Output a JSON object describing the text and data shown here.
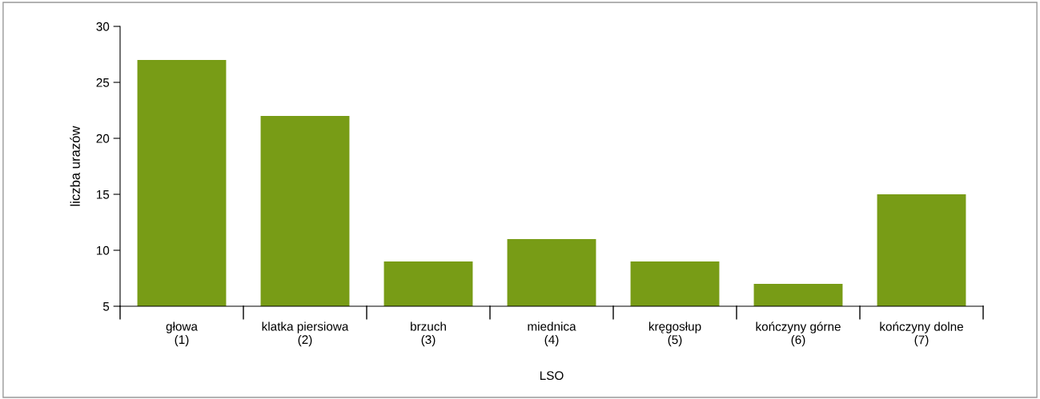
{
  "chart_data": {
    "type": "bar",
    "xlabel": "LSO",
    "ylabel": "liczba urazów",
    "categories": [
      "głowa\n(1)",
      "klatka piersiowa\n(2)",
      "brzuch\n(3)",
      "miednica\n(4)",
      "kręgosłup\n(5)",
      "kończyny górne\n(6)",
      "kończyny dolne\n(7)"
    ],
    "values": [
      27,
      22,
      9,
      11,
      9,
      7,
      15
    ],
    "color": "#789c16",
    "ylim": [
      5,
      30
    ],
    "yticks": [
      5,
      10,
      15,
      20,
      25,
      30
    ],
    "grid": false,
    "legend": false
  }
}
